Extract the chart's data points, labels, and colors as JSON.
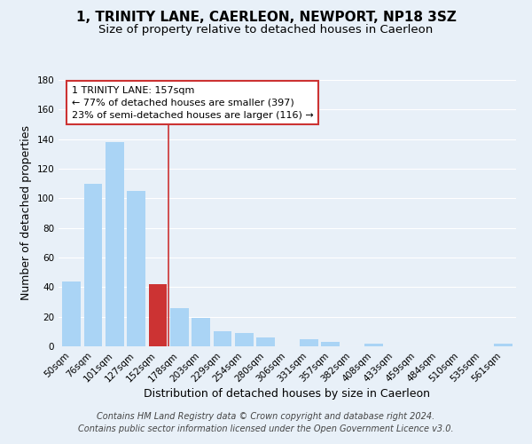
{
  "title": "1, TRINITY LANE, CAERLEON, NEWPORT, NP18 3SZ",
  "subtitle": "Size of property relative to detached houses in Caerleon",
  "xlabel": "Distribution of detached houses by size in Caerleon",
  "ylabel": "Number of detached properties",
  "bar_labels": [
    "50sqm",
    "76sqm",
    "101sqm",
    "127sqm",
    "152sqm",
    "178sqm",
    "203sqm",
    "229sqm",
    "254sqm",
    "280sqm",
    "306sqm",
    "331sqm",
    "357sqm",
    "382sqm",
    "408sqm",
    "433sqm",
    "459sqm",
    "484sqm",
    "510sqm",
    "535sqm",
    "561sqm"
  ],
  "bar_values": [
    44,
    110,
    138,
    105,
    42,
    26,
    19,
    10,
    9,
    6,
    0,
    5,
    3,
    0,
    2,
    0,
    0,
    0,
    0,
    0,
    2
  ],
  "bar_color": "#aad4f5",
  "bar_color_highlight": "#cc3333",
  "highlight_index": 4,
  "vline_x": 4.5,
  "ylim": [
    0,
    180
  ],
  "yticks": [
    0,
    20,
    40,
    60,
    80,
    100,
    120,
    140,
    160,
    180
  ],
  "annotation_title": "1 TRINITY LANE: 157sqm",
  "annotation_line1": "← 77% of detached houses are smaller (397)",
  "annotation_line2": "23% of semi-detached houses are larger (116) →",
  "annotation_box_color": "#ffffff",
  "annotation_box_edge": "#cc3333",
  "footer1": "Contains HM Land Registry data © Crown copyright and database right 2024.",
  "footer2": "Contains public sector information licensed under the Open Government Licence v3.0.",
  "background_color": "#e8f0f8",
  "grid_color": "#ffffff",
  "title_fontsize": 11,
  "subtitle_fontsize": 9.5,
  "axis_label_fontsize": 9,
  "tick_fontsize": 7.5,
  "footer_fontsize": 7,
  "annotation_fontsize": 8
}
